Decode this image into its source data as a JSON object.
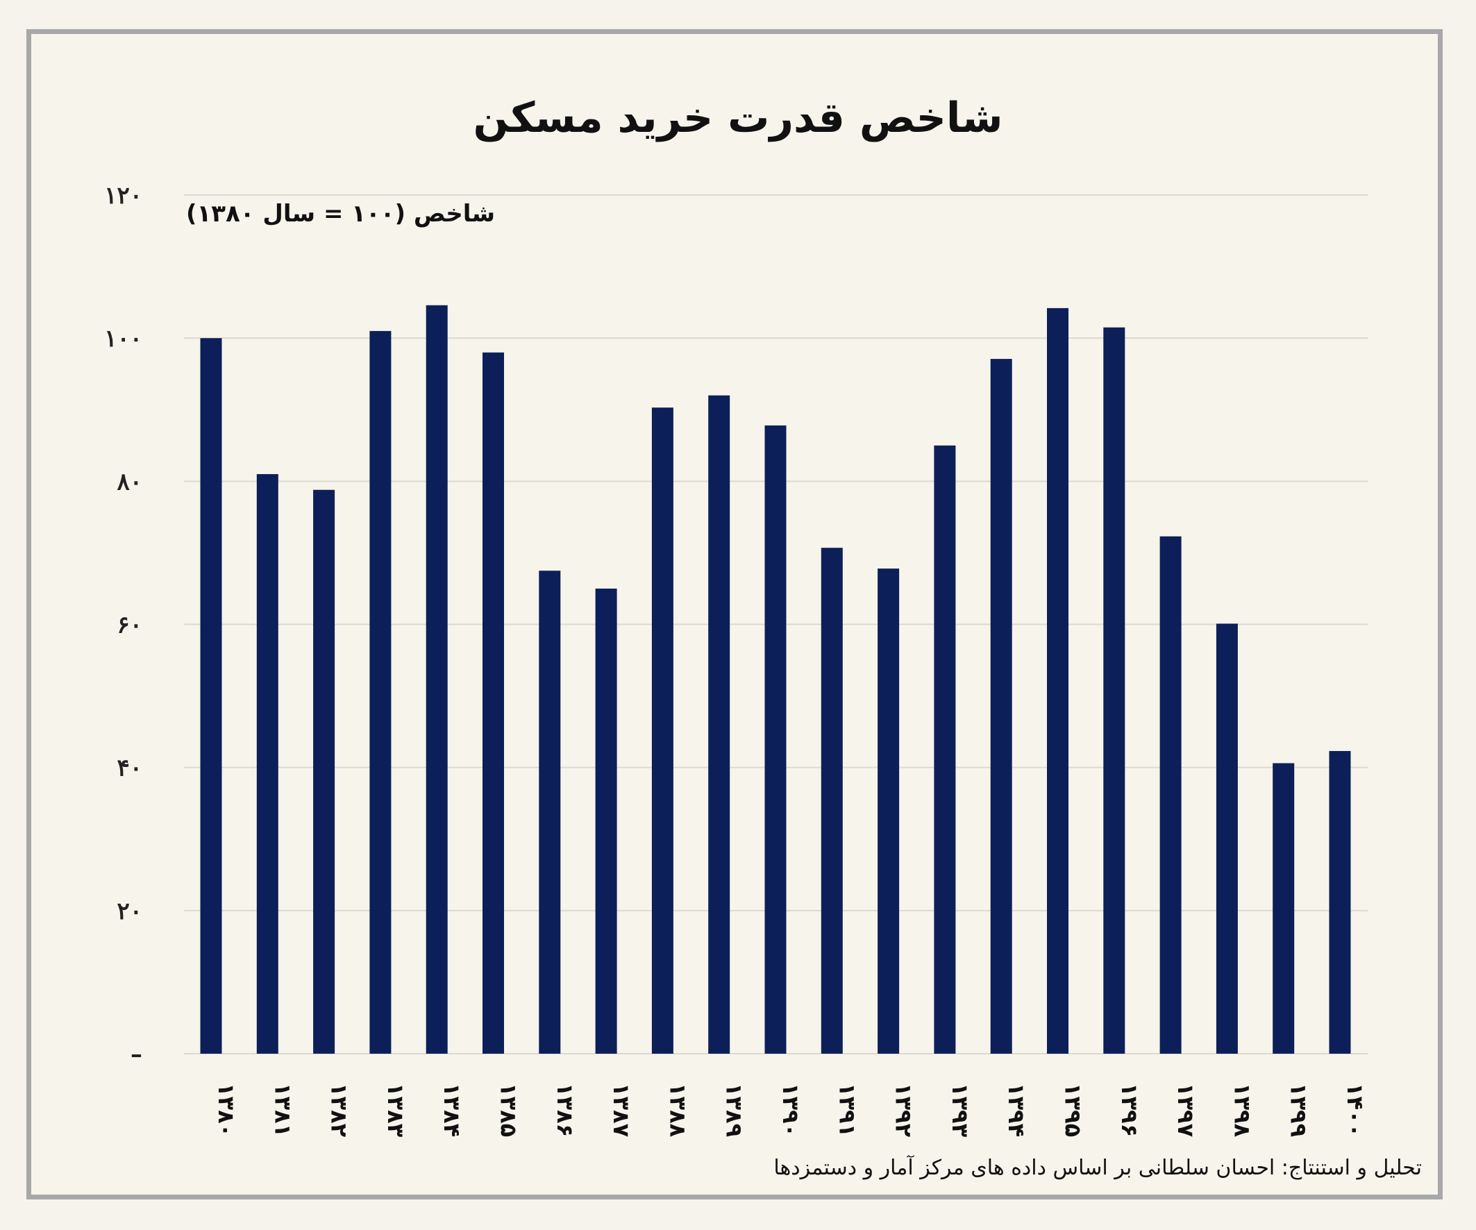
{
  "colors": {
    "bar": "#0c1f58",
    "grid": "#dcd9d1",
    "background": "#f7f4ec"
  },
  "chart_data": {
    "type": "bar",
    "title": "شاخص قدرت خرید مسکن",
    "ylabel": "شاخص (۱۰۰ = سال ۱۳۸۰)",
    "xlabel": "",
    "categories": [
      "۱۳۸۰",
      "۱۳۸۱",
      "۱۳۸۲",
      "۱۳۸۳",
      "۱۳۸۴",
      "۱۳۸۵",
      "۱۳۸۶",
      "۱۳۸۷",
      "۱۳۸۸",
      "۱۳۸۹",
      "۱۳۹۰",
      "۱۳۹۱",
      "۱۳۹۲",
      "۱۳۹۳",
      "۱۳۹۴",
      "۱۳۹۵",
      "۱۳۹۶",
      "۱۳۹۷",
      "۱۳۹۸",
      "۱۳۹۹",
      "۱۴۰۰"
    ],
    "values": [
      100,
      81,
      78.8,
      101,
      104.6,
      98,
      67.5,
      65,
      90.3,
      92,
      87.8,
      70.7,
      67.8,
      85,
      97.1,
      104.2,
      101.5,
      72.3,
      60.1,
      40.6,
      42.3
    ],
    "ylim": [
      0,
      120
    ],
    "yticks": [
      0,
      20,
      40,
      60,
      80,
      100,
      120
    ],
    "ytick_labels": [
      "–",
      "۲۰",
      "۴۰",
      "۶۰",
      "۸۰",
      "۱۰۰",
      "۱۲۰"
    ],
    "grid": true,
    "legend": "none"
  },
  "source_note": "تحلیل و استنتاج: احسان سلطانی بر اساس داده های مرکز آمار و دستمزدها"
}
